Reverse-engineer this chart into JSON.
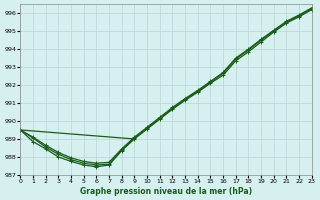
{
  "title": "Graphe pression niveau de la mer (hPa)",
  "background_color": "#d6f0f0",
  "grid_color": "#b8d4d4",
  "line_color": "#1a5c1a",
  "xlim": [
    0,
    23
  ],
  "ylim": [
    987,
    996.5
  ],
  "xticks": [
    0,
    1,
    2,
    3,
    4,
    5,
    6,
    7,
    8,
    9,
    10,
    11,
    12,
    13,
    14,
    15,
    16,
    17,
    18,
    19,
    20,
    21,
    22,
    23
  ],
  "yticks": [
    987,
    988,
    989,
    990,
    991,
    992,
    993,
    994,
    995,
    996
  ],
  "series": [
    {
      "x": [
        0,
        1,
        2,
        3,
        4,
        5,
        6,
        7,
        8,
        9,
        10,
        11,
        12,
        13,
        14,
        15,
        16,
        17,
        18,
        19,
        20,
        21,
        22,
        23
      ],
      "y": [
        989.5,
        988.85,
        988.45,
        988.0,
        987.75,
        987.55,
        987.45,
        987.55,
        988.35,
        989.0,
        989.55,
        990.1,
        990.65,
        991.15,
        991.6,
        992.1,
        992.55,
        993.35,
        993.85,
        994.4,
        994.95,
        995.45,
        995.8,
        996.2
      ],
      "marker": "+",
      "linewidth": 0.9
    },
    {
      "x": [
        0,
        9
      ],
      "y": [
        989.5,
        989.0
      ],
      "marker": null,
      "linewidth": 0.9
    },
    {
      "x": [
        0,
        1,
        2,
        3,
        4,
        5,
        6,
        7,
        8,
        9,
        10,
        11,
        12,
        13,
        14,
        15,
        16,
        17,
        18,
        19,
        20,
        21,
        22,
        23
      ],
      "y": [
        989.5,
        989.05,
        988.55,
        988.15,
        987.85,
        987.65,
        987.55,
        987.6,
        988.4,
        989.05,
        989.6,
        990.15,
        990.7,
        991.2,
        991.65,
        992.15,
        992.65,
        993.45,
        993.95,
        994.5,
        995.0,
        995.5,
        995.85,
        996.25
      ],
      "marker": "+",
      "linewidth": 0.9
    },
    {
      "x": [
        0,
        1,
        2,
        3,
        4,
        5,
        6,
        7,
        8,
        9,
        10,
        11,
        12,
        13,
        14,
        15,
        16,
        17,
        18,
        19,
        20,
        21,
        22,
        23
      ],
      "y": [
        989.5,
        989.1,
        988.65,
        988.25,
        987.95,
        987.75,
        987.65,
        987.7,
        988.45,
        989.1,
        989.65,
        990.2,
        990.75,
        991.25,
        991.7,
        992.2,
        992.7,
        993.5,
        994.0,
        994.55,
        995.05,
        995.55,
        995.9,
        996.3
      ],
      "marker": "+",
      "linewidth": 0.9
    }
  ]
}
